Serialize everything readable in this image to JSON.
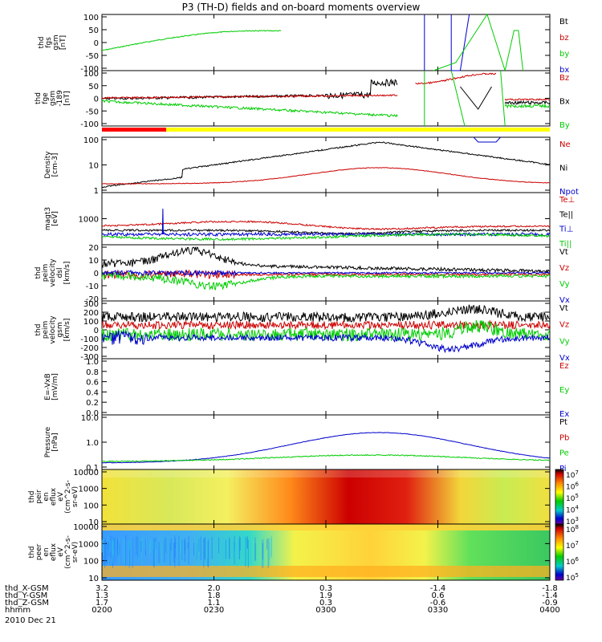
{
  "title": "P3 (TH-D) fields and on-board moments overview",
  "colors": {
    "black": "#000000",
    "red": "#cc0000",
    "green": "#00cc00",
    "blue": "#0000cc",
    "bar_red": "#ff0000",
    "bar_yellow": "#ffff00"
  },
  "chart_data": [
    {
      "type": "line",
      "panel": "fgs",
      "ylabel": [
        "thd",
        "fgs",
        "gsm",
        "[nT]"
      ],
      "yticks": [
        "100",
        "50",
        "0",
        "-50",
        "-100"
      ],
      "ylim": [
        -100,
        100
      ],
      "legend": [
        "Bt",
        "bz",
        "by",
        "bx"
      ],
      "legend_colors": [
        "black",
        "red",
        "green",
        "blue"
      ]
    },
    {
      "type": "line",
      "panel": "fgm",
      "ylabel": [
        "thd",
        "fge",
        "gsm",
        "-189",
        "[nT]"
      ],
      "yticks": [
        "100",
        "50",
        "0",
        "-50",
        "-100"
      ],
      "ylim": [
        -125,
        100
      ],
      "legend": [
        "Bz",
        "Bx",
        "By"
      ],
      "legend_colors": [
        "red",
        "black",
        "green"
      ]
    },
    {
      "type": "line",
      "panel": "density",
      "ylabel": [
        "Density",
        "[cm-3]"
      ],
      "yticks": [
        "100",
        "10",
        "1"
      ],
      "scale": "log",
      "legend": [
        "Ne",
        "Ni",
        "Npot"
      ],
      "legend_colors": [
        "red",
        "black",
        "blue"
      ]
    },
    {
      "type": "line",
      "panel": "temperature",
      "ylabel": [
        "magt3",
        "[eV]"
      ],
      "yticks": [
        "1000"
      ],
      "scale": "log",
      "legend": [
        "Te⊥",
        "Te||",
        "Ti⊥",
        "Ti||"
      ],
      "legend_colors": [
        "red",
        "black",
        "blue",
        "green"
      ]
    },
    {
      "type": "line",
      "panel": "velocity_dsl",
      "ylabel": [
        "thd",
        "peim",
        "velocity",
        "dsl",
        "[km/s]"
      ],
      "yticks": [
        "20",
        "10",
        "0",
        "-10",
        "-20"
      ],
      "ylim": [
        -20,
        20
      ],
      "legend": [
        "Vt",
        "Vz",
        "Vy",
        "Vx"
      ],
      "legend_colors": [
        "black",
        "red",
        "green",
        "blue"
      ]
    },
    {
      "type": "line",
      "panel": "velocity_gsm",
      "ylabel": [
        "thd",
        "peim",
        "velocity",
        "gsm",
        "[km/s]"
      ],
      "yticks": [
        "300",
        "200",
        "100",
        "0",
        "-100",
        "-200",
        "-300"
      ],
      "ylim": [
        -300,
        300
      ],
      "legend": [
        "Vt",
        "Vz",
        "Vy",
        "Vx"
      ],
      "legend_colors": [
        "black",
        "red",
        "green",
        "blue"
      ]
    },
    {
      "type": "line",
      "panel": "efield",
      "ylabel": [
        "E=-VxB",
        "[mV/m]"
      ],
      "yticks": [
        "1.0",
        "0.8",
        "0.6",
        "0.4",
        "0.2",
        "0.0"
      ],
      "ylim": [
        0,
        1
      ],
      "legend": [
        "Ez",
        "Ey",
        "Ex"
      ],
      "legend_colors": [
        "red",
        "green",
        "blue"
      ]
    },
    {
      "type": "line",
      "panel": "pressure",
      "ylabel": [
        "Pressure",
        "[nPa]"
      ],
      "yticks": [
        "10.0",
        "1.0",
        "0.1"
      ],
      "scale": "log",
      "legend": [
        "Pt",
        "Pb",
        "Pe",
        "Pi"
      ],
      "legend_colors": [
        "black",
        "red",
        "green",
        "blue"
      ]
    },
    {
      "type": "heatmap",
      "panel": "ion_spectrogram",
      "ylabel": [
        "thd",
        "peir",
        "en",
        "eflux",
        "eV",
        "(cm^2-s-",
        "sr-eV)"
      ],
      "yticks": [
        "10000",
        "1000",
        "100",
        "10"
      ],
      "scale": "log",
      "colorbar": {
        "base": "10",
        "exponents": [
          "7",
          "6",
          "5",
          "4",
          "3"
        ]
      }
    },
    {
      "type": "heatmap",
      "panel": "electron_spectrogram",
      "ylabel": [
        "thd",
        "peer",
        "en",
        "eflux",
        "eV",
        "(cm^2-s-",
        "sr-eV)"
      ],
      "yticks": [
        "10000",
        "1000",
        "100",
        "10"
      ],
      "scale": "log",
      "colorbar": {
        "base": "10",
        "exponents": [
          "8",
          "7",
          "6",
          "5"
        ]
      }
    }
  ],
  "xaxis": {
    "rows": [
      {
        "label": "thd_X-GSM",
        "values": [
          "3.2",
          "2.0",
          "0.3",
          "-1.4",
          "-1.8"
        ]
      },
      {
        "label": "thd_Y-GSM",
        "values": [
          "1.3",
          "1.8",
          "1.9",
          "0.6",
          "-1.4"
        ]
      },
      {
        "label": "thd_Z-GSM",
        "values": [
          "1.7",
          "1.1",
          "0.3",
          "-0.6",
          "-0.9"
        ]
      },
      {
        "label": "hhmm",
        "values": [
          "0200",
          "0230",
          "0300",
          "0330",
          "0400"
        ]
      }
    ],
    "date": "2010 Dec 21"
  }
}
